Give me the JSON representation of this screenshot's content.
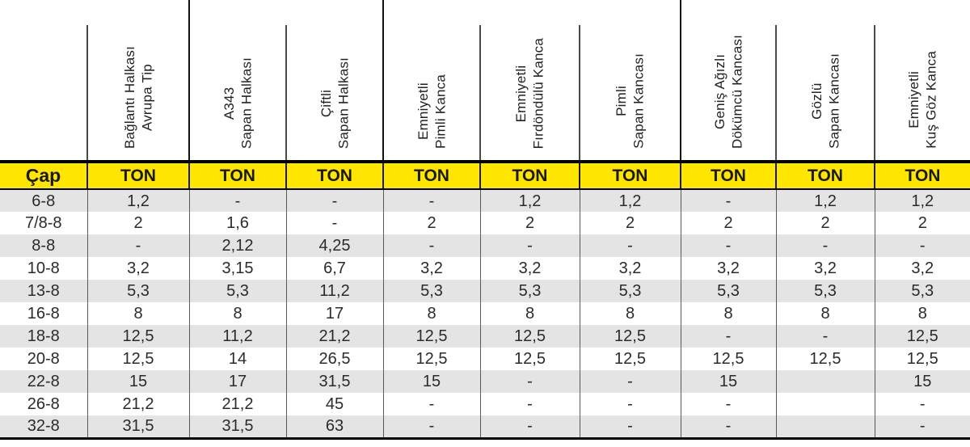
{
  "table": {
    "cap_header": "Çap",
    "ton_header": "TON",
    "columns": [
      {
        "line1": "Bağlantı Halkası",
        "line2": "Avrupa Tip"
      },
      {
        "line1": "A343",
        "line2": "Sapan Halkası"
      },
      {
        "line1": "Çiftli",
        "line2": "Sapan Halkası"
      },
      {
        "line1": "Emniyetli",
        "line2": "Pimli Kanca"
      },
      {
        "line1": "Emniyetli",
        "line2": "Fırdöndülü Kanca"
      },
      {
        "line1": "Pimli",
        "line2": "Sapan Kancası"
      },
      {
        "line1": "Geniş Ağızlı",
        "line2": "Dökümcü Kancası"
      },
      {
        "line1": "Gözlü",
        "line2": "Sapan Kancası"
      },
      {
        "line1": "Emniyetli",
        "line2": "Kuş Göz Kanca"
      }
    ],
    "rows": [
      {
        "cap": "6-8",
        "values": [
          "1,2",
          "-",
          "-",
          "-",
          "1,2",
          "1,2",
          "-",
          "1,2",
          "1,2"
        ]
      },
      {
        "cap": "7/8-8",
        "values": [
          "2",
          "1,6",
          "-",
          "2",
          "2",
          "2",
          "2",
          "2",
          "2"
        ]
      },
      {
        "cap": "8-8",
        "values": [
          "-",
          "2,12",
          "4,25",
          "-",
          "-",
          "-",
          "-",
          "-",
          "-"
        ]
      },
      {
        "cap": "10-8",
        "values": [
          "3,2",
          "3,15",
          "6,7",
          "3,2",
          "3,2",
          "3,2",
          "3,2",
          "3,2",
          "3,2"
        ]
      },
      {
        "cap": "13-8",
        "values": [
          "5,3",
          "5,3",
          "11,2",
          "5,3",
          "5,3",
          "5,3",
          "5,3",
          "5,3",
          "5,3"
        ]
      },
      {
        "cap": "16-8",
        "values": [
          "8",
          "8",
          "17",
          "8",
          "8",
          "8",
          "8",
          "8",
          "8"
        ]
      },
      {
        "cap": "18-8",
        "values": [
          "12,5",
          "11,2",
          "21,2",
          "12,5",
          "12,5",
          "12,5",
          "-",
          "-",
          "12,5"
        ]
      },
      {
        "cap": "20-8",
        "values": [
          "12,5",
          "14",
          "26,5",
          "12,5",
          "12,5",
          "12,5",
          "12,5",
          "12,5",
          "12,5"
        ]
      },
      {
        "cap": "22-8",
        "values": [
          "15",
          "17",
          "31,5",
          "15",
          "-",
          "-",
          "15",
          "",
          "15"
        ]
      },
      {
        "cap": "26-8",
        "values": [
          "21,2",
          "21,2",
          "45",
          "-",
          "-",
          "-",
          "-",
          "",
          "-"
        ]
      },
      {
        "cap": "32-8",
        "values": [
          "31,5",
          "31,5",
          "63",
          "-",
          "-",
          "-",
          "-",
          "",
          "-"
        ]
      }
    ]
  },
  "colors": {
    "header_yellow": "#ffe600",
    "stripe_gray": "#e4e4e5",
    "line_black": "#000000",
    "text_black": "#231f20"
  }
}
